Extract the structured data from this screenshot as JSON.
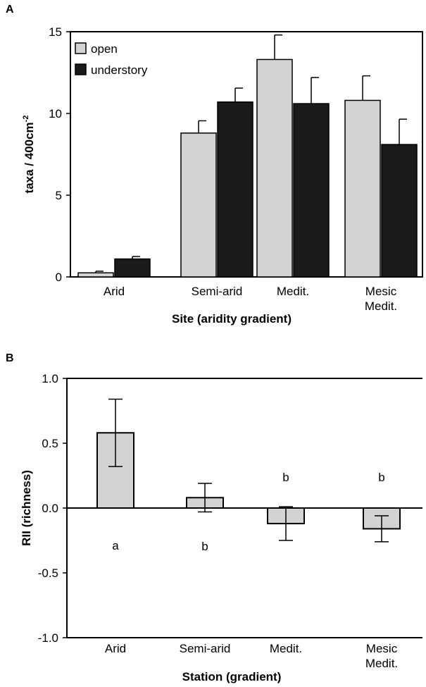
{
  "chart_data": [
    {
      "panel": "A",
      "type": "bar",
      "xlabel": "Site (aridity gradient)",
      "ylabel": "taxa / 400cm",
      "ylabel_sup": "-2",
      "ylim": [
        0,
        15
      ],
      "yticks": [
        "0",
        "5",
        "10",
        "15"
      ],
      "categories": [
        [
          "Arid"
        ],
        [
          "Semi-arid"
        ],
        [
          "Medit."
        ],
        [
          "Mesic",
          "Medit."
        ]
      ],
      "series": [
        {
          "name": "open",
          "color": "#d3d3d3",
          "values": [
            0.25,
            8.8,
            13.3,
            10.8
          ],
          "errors": [
            0.1,
            0.75,
            1.5,
            1.5
          ]
        },
        {
          "name": "understory",
          "color": "#1a1a1a",
          "values": [
            1.1,
            10.7,
            10.6,
            8.1
          ],
          "errors": [
            0.15,
            0.85,
            1.6,
            1.55
          ]
        }
      ],
      "legend_position": "top-left"
    },
    {
      "panel": "B",
      "type": "bar",
      "xlabel": "Station (gradient)",
      "ylabel": "RII (richness)",
      "ylim": [
        -1.0,
        1.0
      ],
      "yticks": [
        "-1.0",
        "-0.5",
        "0.0",
        "0.5",
        "1.0"
      ],
      "categories": [
        [
          "Arid"
        ],
        [
          "Semi-arid"
        ],
        [
          "Medit."
        ],
        [
          "Mesic",
          "Medit."
        ]
      ],
      "series": [
        {
          "color": "#d3d3d3",
          "values": [
            0.58,
            0.08,
            -0.12,
            -0.16
          ],
          "errors": [
            0.26,
            0.11,
            0.13,
            0.1
          ]
        }
      ],
      "significance": [
        "a",
        "b",
        "b",
        "b"
      ]
    }
  ]
}
